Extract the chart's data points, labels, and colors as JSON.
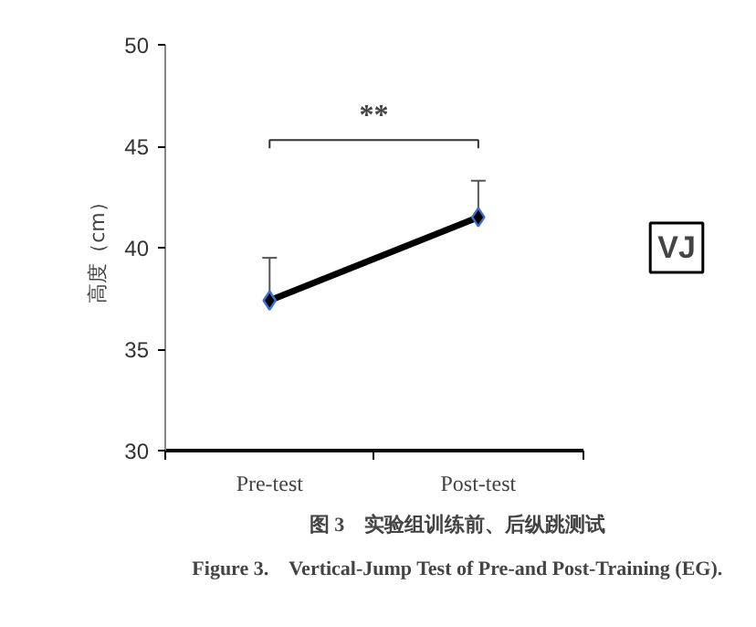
{
  "chart_data": {
    "type": "line",
    "categories": [
      "Pre-test",
      "Post-test"
    ],
    "series": [
      {
        "color": "#000000",
        "values": [
          37.4,
          41.5
        ],
        "errors": [
          [
            37.4,
            39.5
          ],
          [
            41.5,
            43.3
          ]
        ]
      }
    ],
    "marker": "diamond",
    "ylabel": "高度（cm）",
    "ylim": [
      30,
      50
    ],
    "yticks": [
      30,
      35,
      40,
      45,
      50
    ],
    "grid": false,
    "annotations": [
      "**",
      "VJ",
      "图 3　实验组训练前、后纵跳测试",
      "Figure 3.　Vertical-Jump Test of Pre-and Post-Training (EG)."
    ]
  }
}
